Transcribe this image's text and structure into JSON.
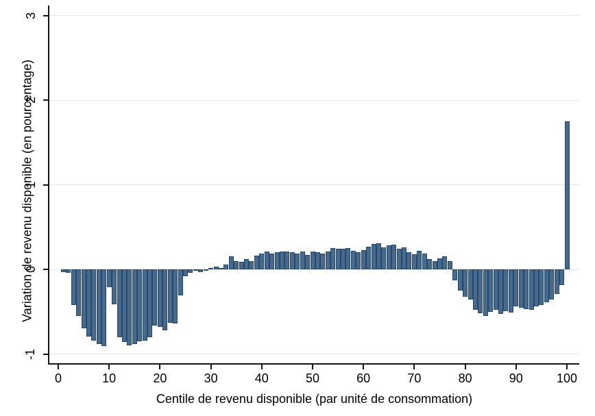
{
  "chart_data": {
    "type": "bar",
    "title": "",
    "xlabel": "Centile de revenu disponible (par unité de consommation)",
    "ylabel": "Variation de revenu disponible (en pourcentage)",
    "x_start_centile": 1,
    "categories_note": "x = centile 1..100",
    "values": [
      -0.03,
      -0.04,
      -0.42,
      -0.55,
      -0.7,
      -0.79,
      -0.84,
      -0.88,
      -0.91,
      -0.21,
      -0.41,
      -0.8,
      -0.86,
      -0.9,
      -0.88,
      -0.85,
      -0.84,
      -0.8,
      -0.66,
      -0.68,
      -0.72,
      -0.63,
      -0.64,
      -0.31,
      -0.08,
      -0.04,
      -0.02,
      -0.03,
      -0.01,
      0.02,
      0.03,
      0.02,
      0.06,
      0.15,
      0.1,
      0.09,
      0.12,
      0.1,
      0.16,
      0.19,
      0.21,
      0.19,
      0.2,
      0.21,
      0.21,
      0.2,
      0.19,
      0.21,
      0.17,
      0.21,
      0.2,
      0.19,
      0.21,
      0.25,
      0.24,
      0.24,
      0.25,
      0.22,
      0.2,
      0.23,
      0.27,
      0.3,
      0.31,
      0.26,
      0.28,
      0.29,
      0.24,
      0.26,
      0.2,
      0.18,
      0.22,
      0.19,
      0.12,
      0.1,
      0.13,
      0.15,
      0.1,
      -0.13,
      -0.25,
      -0.32,
      -0.36,
      -0.48,
      -0.52,
      -0.55,
      -0.5,
      -0.48,
      -0.53,
      -0.49,
      -0.51,
      -0.44,
      -0.45,
      -0.47,
      -0.48,
      -0.44,
      -0.42,
      -0.39,
      -0.36,
      -0.29,
      -0.19,
      1.75
    ],
    "xticks": [
      0,
      10,
      20,
      30,
      40,
      50,
      60,
      70,
      80,
      90,
      100
    ],
    "yticks": [
      -1,
      0,
      1,
      2,
      3
    ],
    "ylim": [
      -1.12,
      3.1
    ],
    "grid": true,
    "legend": null,
    "bar_fill_color": "#47698c",
    "bar_border_color": "#26486d",
    "gridline_color": "#e4e4e4",
    "axis_color": "#141414",
    "background_color": "#ffffff"
  }
}
